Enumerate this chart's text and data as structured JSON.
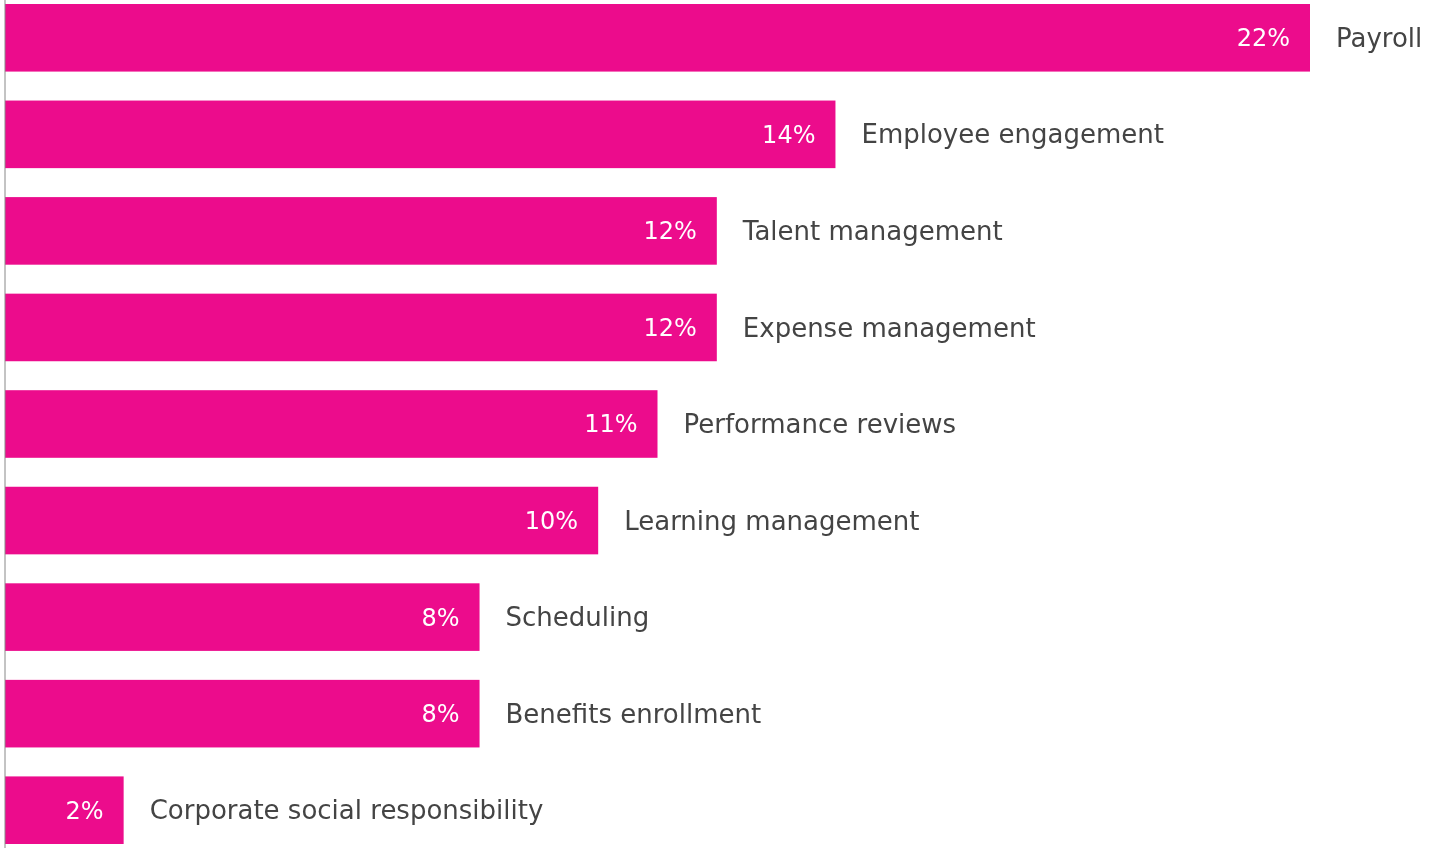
{
  "chart_data": {
    "type": "bar",
    "orientation": "horizontal",
    "categories": [
      "Payroll",
      "Employee engagement",
      "Talent management",
      "Expense management",
      "Performance reviews",
      "Learning management",
      "Scheduling",
      "Benefits enrollment",
      "Corporate social responsibility"
    ],
    "values": [
      22,
      14,
      12,
      12,
      11,
      10,
      8,
      8,
      2
    ],
    "value_labels": [
      "22%",
      "14%",
      "12%",
      "12%",
      "11%",
      "10%",
      "8%",
      "8%",
      "2%"
    ],
    "color": "#ec0c8c"
  }
}
